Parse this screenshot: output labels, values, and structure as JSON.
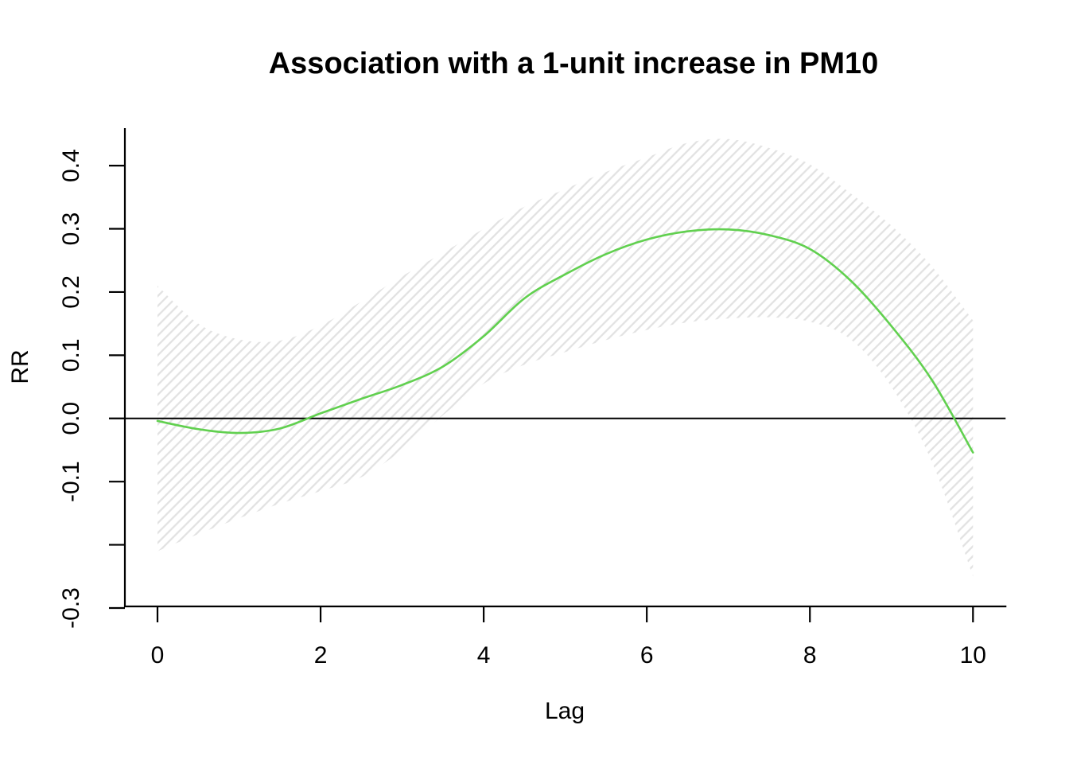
{
  "title": "Association with a 1-unit increase in PM10",
  "chart_data": {
    "type": "line",
    "title": "Association with a 1-unit increase in PM10",
    "xlabel": "Lag",
    "ylabel": "RR",
    "xlim": [
      -0.4,
      10.4
    ],
    "ylim": [
      -0.3,
      0.4593
    ],
    "grid": false,
    "legend": "none",
    "reference_line_y": 0,
    "band_style": "hatched-diagonal",
    "colors": {
      "estimate_line": "#61D04F",
      "hatch": "#e2e2e2",
      "axis": "#000000",
      "reference_line": "#000000",
      "background": "#ffffff"
    },
    "x_ticks": [
      {
        "value": 0,
        "label": "0"
      },
      {
        "value": 2,
        "label": "2"
      },
      {
        "value": 4,
        "label": "4"
      },
      {
        "value": 6,
        "label": "6"
      },
      {
        "value": 8,
        "label": "8"
      },
      {
        "value": 10,
        "label": "10"
      }
    ],
    "y_ticks": [
      {
        "value": 0.4,
        "label": "0.4"
      },
      {
        "value": 0.3,
        "label": "0.3"
      },
      {
        "value": 0.2,
        "label": "0.2"
      },
      {
        "value": 0.1,
        "label": "0.1"
      },
      {
        "value": 0.0,
        "label": "0.0"
      },
      {
        "value": -0.1,
        "label": "-0.1"
      },
      {
        "value": -0.2,
        "label": ""
      },
      {
        "value": -0.3,
        "label": "-0.3"
      }
    ],
    "x": [
      0,
      0.5,
      1,
      1.5,
      2,
      2.5,
      3,
      3.5,
      4,
      4.5,
      5,
      5.5,
      6,
      6.5,
      7,
      7.5,
      8,
      8.5,
      9,
      9.5,
      10
    ],
    "series": [
      {
        "name": "estimate",
        "values": [
          -0.004,
          -0.017,
          -0.023,
          -0.016,
          0.008,
          0.031,
          0.053,
          0.082,
          0.13,
          0.19,
          0.228,
          0.26,
          0.283,
          0.296,
          0.299,
          0.29,
          0.268,
          0.218,
          0.146,
          0.06,
          -0.054
        ]
      },
      {
        "name": "ci_upper",
        "values": [
          0.21,
          0.15,
          0.125,
          0.123,
          0.147,
          0.185,
          0.225,
          0.262,
          0.3,
          0.335,
          0.363,
          0.39,
          0.413,
          0.436,
          0.442,
          0.428,
          0.402,
          0.356,
          0.305,
          0.24,
          0.155
        ]
      },
      {
        "name": "ci_lower",
        "values": [
          -0.21,
          -0.183,
          -0.158,
          -0.135,
          -0.115,
          -0.093,
          -0.05,
          0.005,
          0.055,
          0.085,
          0.105,
          0.124,
          0.14,
          0.152,
          0.158,
          0.16,
          0.153,
          0.125,
          0.05,
          -0.07,
          -0.25
        ]
      }
    ]
  }
}
